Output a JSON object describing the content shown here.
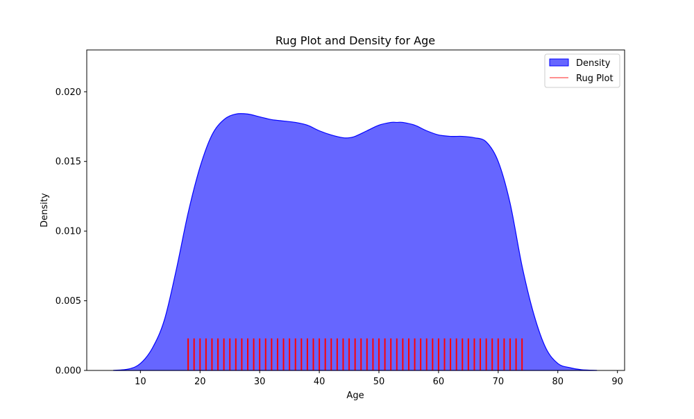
{
  "chart_data": {
    "type": "area",
    "title": "Rug Plot and Density for Age",
    "xlabel": "Age",
    "ylabel": "Density",
    "xlim": [
      1,
      91.2
    ],
    "ylim": [
      0,
      0.023
    ],
    "xticks": [
      10,
      20,
      30,
      40,
      50,
      60,
      70,
      80,
      90
    ],
    "xtick_labels": [
      "10",
      "20",
      "30",
      "40",
      "50",
      "60",
      "70",
      "80",
      "90"
    ],
    "yticks": [
      0,
      0.005,
      0.01,
      0.015,
      0.02
    ],
    "ytick_labels": [
      "0.000",
      "0.005",
      "0.010",
      "0.015",
      "0.020"
    ],
    "grid": false,
    "legend_position": "top-right",
    "legend": [
      {
        "label": "Density",
        "kind": "patch"
      },
      {
        "label": "Rug Plot",
        "kind": "line"
      }
    ],
    "density": {
      "name": "Density",
      "color": "#0000ff",
      "fill_color": "#6666ff",
      "x": [
        5.5,
        8,
        10,
        12,
        14,
        16,
        18,
        20,
        22,
        24,
        26,
        28,
        30,
        32,
        34,
        36,
        38,
        40,
        42,
        44,
        45,
        46,
        48,
        50,
        52,
        53,
        54,
        56,
        58,
        60,
        62,
        64,
        66,
        68,
        70,
        72,
        74,
        76,
        78,
        80,
        82,
        84,
        86.5
      ],
      "y": [
        1e-05,
        0.0001,
        0.0005,
        0.0016,
        0.0036,
        0.0072,
        0.0113,
        0.0146,
        0.0169,
        0.018,
        0.0184,
        0.0184,
        0.0182,
        0.018,
        0.0179,
        0.0178,
        0.0176,
        0.0172,
        0.0169,
        0.0167,
        0.0167,
        0.0168,
        0.0172,
        0.0176,
        0.0178,
        0.0178,
        0.0178,
        0.0176,
        0.0172,
        0.0169,
        0.0168,
        0.0168,
        0.0167,
        0.0164,
        0.015,
        0.012,
        0.0075,
        0.004,
        0.0016,
        0.0005,
        0.0002,
        5e-05,
        1e-05
      ]
    },
    "rug": {
      "name": "Rug Plot",
      "color": "#ff0000",
      "height": 0.0023,
      "values": [
        18,
        19,
        20,
        21,
        22,
        23,
        24,
        25,
        26,
        27,
        28,
        29,
        30,
        31,
        32,
        33,
        34,
        35,
        36,
        37,
        38,
        39,
        40,
        41,
        42,
        43,
        44,
        45,
        46,
        47,
        48,
        49,
        50,
        51,
        52,
        53,
        54,
        55,
        56,
        57,
        58,
        59,
        60,
        61,
        62,
        63,
        64,
        65,
        66,
        67,
        68,
        69,
        70,
        71,
        72,
        73,
        74
      ]
    }
  }
}
